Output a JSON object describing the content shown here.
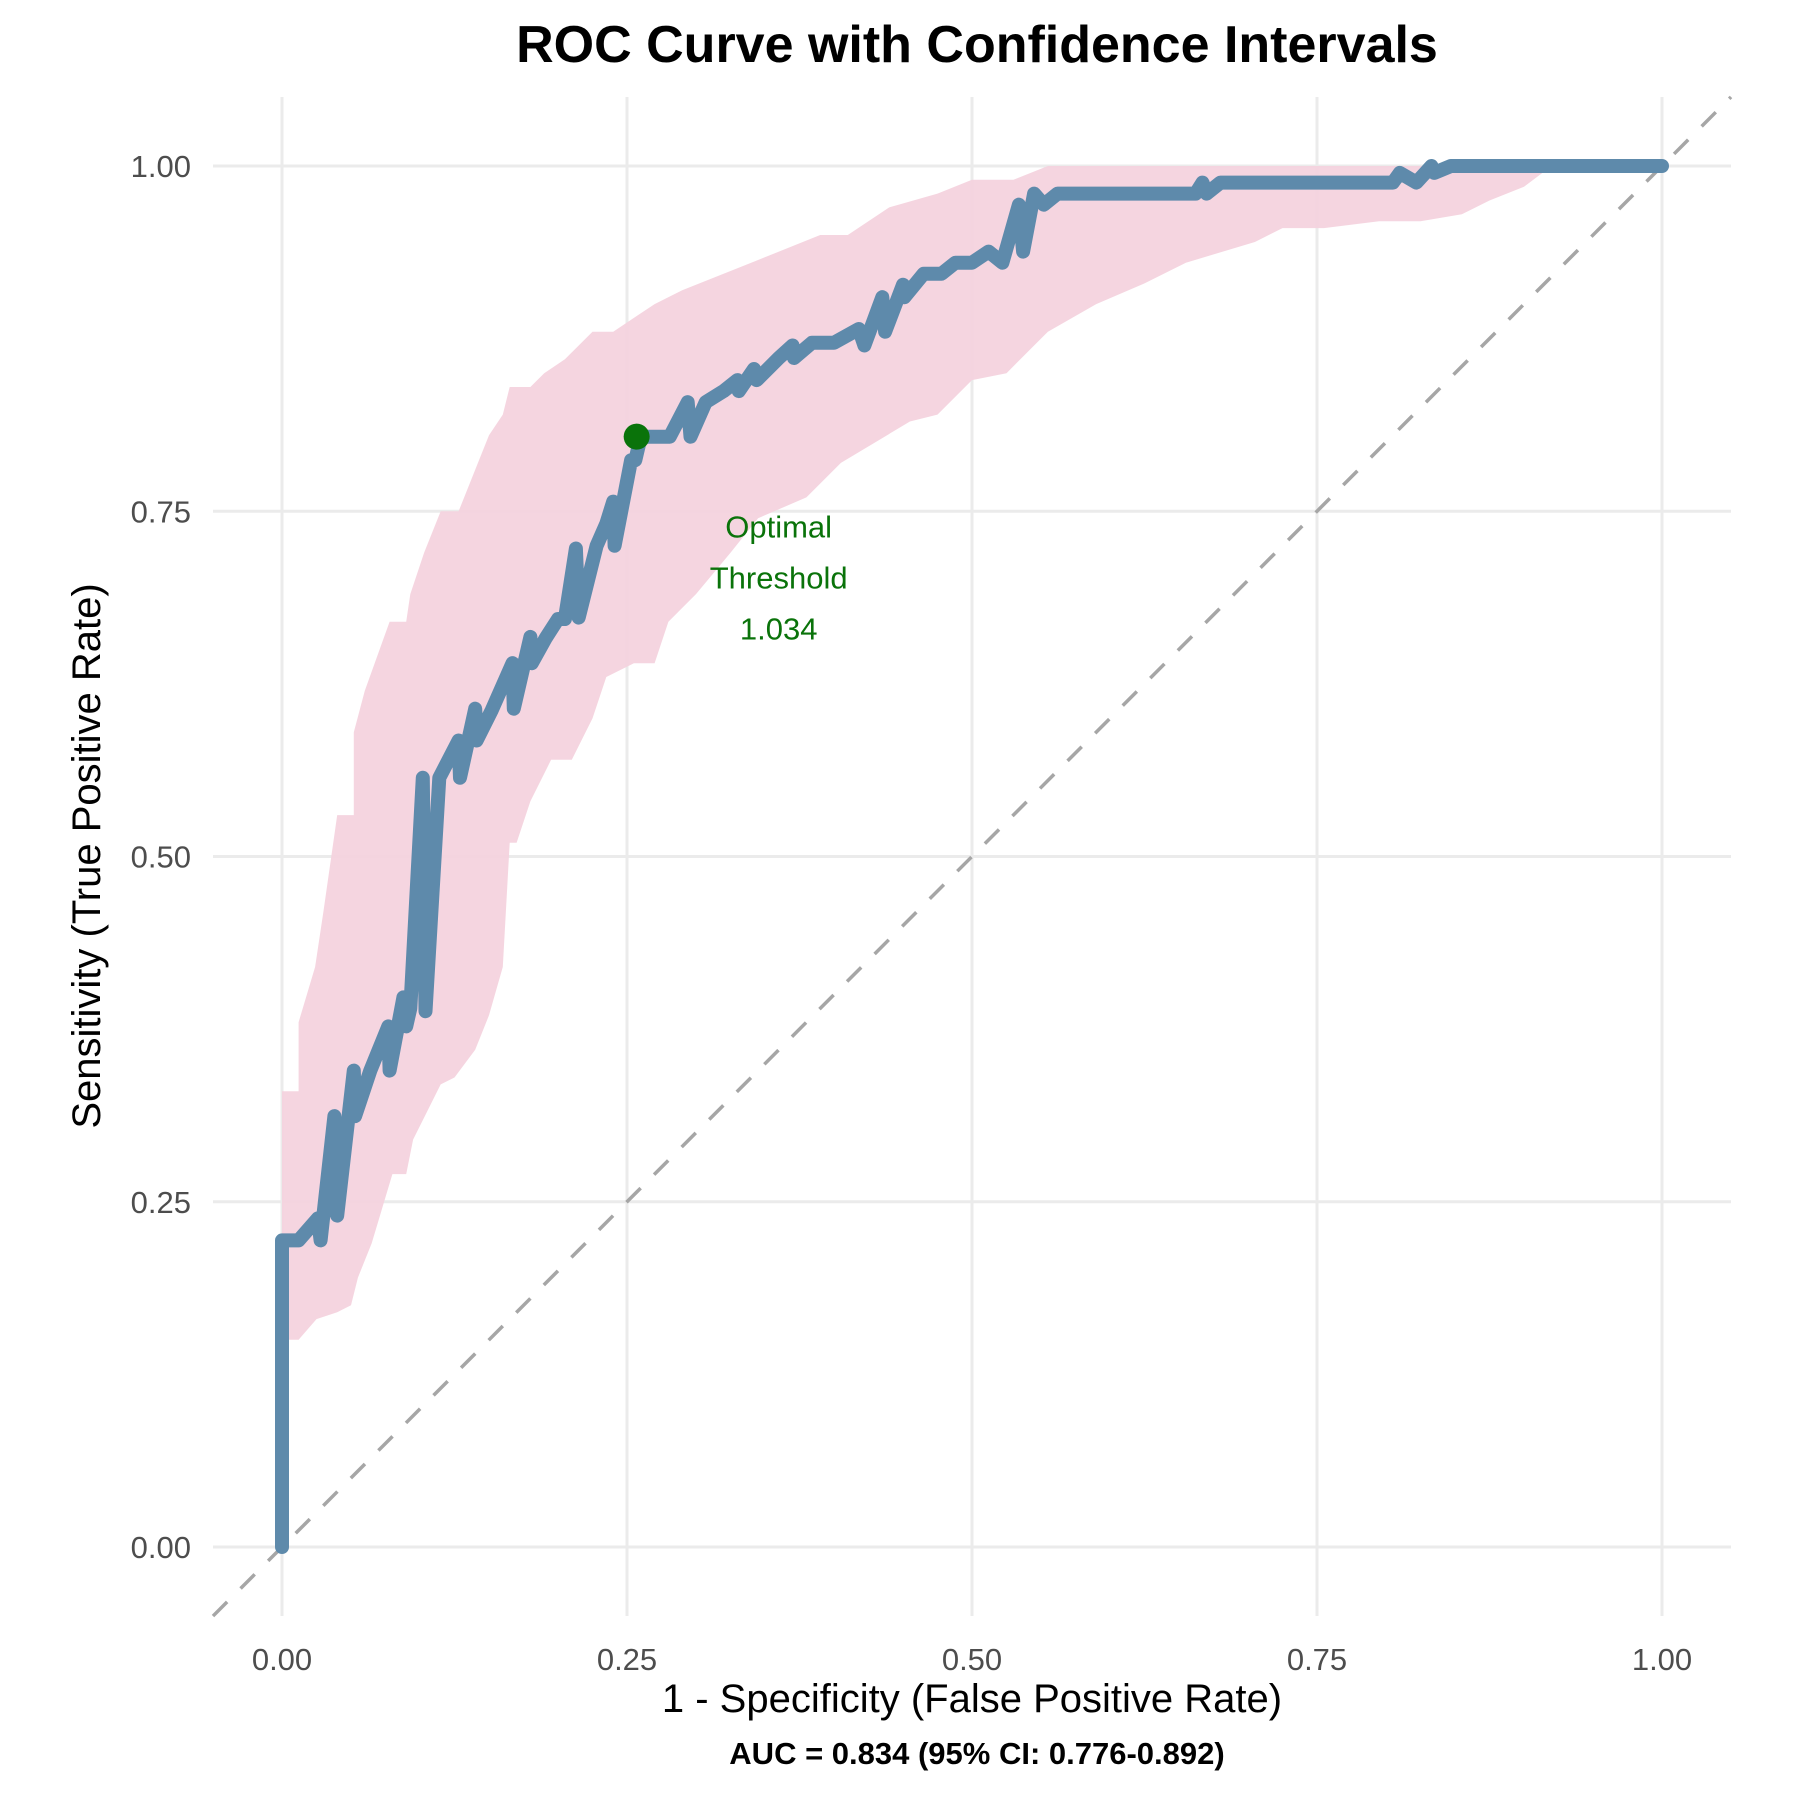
{
  "chart_data": {
    "type": "line",
    "title": "ROC Curve with Confidence Intervals",
    "xlabel": "1 - Specificity (False Positive Rate)",
    "ylabel": "Sensitivity (True Positive Rate)",
    "caption": "AUC = 0.834 (95% CI: 0.776-0.892)",
    "xlim": [
      -0.05,
      1.05
    ],
    "ylim": [
      -0.05,
      1.05
    ],
    "grid": true,
    "legend": "none",
    "x_ticks": [
      0,
      0.25,
      0.5,
      0.75,
      1
    ],
    "x_tick_labels": [
      "0.00",
      "0.25",
      "0.50",
      "0.75",
      "1.00"
    ],
    "y_ticks": [
      0,
      0.25,
      0.5,
      0.75,
      1
    ],
    "y_tick_labels": [
      "0.00",
      "0.25",
      "0.50",
      "0.75",
      "1.00"
    ],
    "colors": {
      "roc_line": "#5e8aab",
      "ci_band": "#f4d3de",
      "reference_line": "#a6a6a6",
      "optimal_point": "#0a730a",
      "grid": "#ebebeb"
    },
    "series": [
      {
        "name": "ROC curve",
        "x": [
          0,
          0,
          0.012,
          0.026,
          0.028,
          0.038,
          0.04,
          0.052,
          0.053,
          0.064,
          0.077,
          0.078,
          0.088,
          0.09,
          0.093,
          0.102,
          0.104,
          0.114,
          0.128,
          0.129,
          0.14,
          0.141,
          0.152,
          0.167,
          0.168,
          0.18,
          0.181,
          0.191,
          0.2,
          0.205,
          0.213,
          0.215,
          0.228,
          0.235,
          0.24,
          0.241,
          0.253,
          0.256,
          0.26,
          0.281,
          0.294,
          0.296,
          0.307,
          0.32,
          0.33,
          0.331,
          0.342,
          0.344,
          0.36,
          0.37,
          0.371,
          0.384,
          0.385,
          0.4,
          0.418,
          0.422,
          0.435,
          0.437,
          0.45,
          0.451,
          0.465,
          0.478,
          0.488,
          0.5,
          0.512,
          0.522,
          0.534,
          0.537,
          0.545,
          0.552,
          0.562,
          0.58,
          0.662,
          0.667,
          0.67,
          0.68,
          0.805,
          0.81,
          0.822,
          0.833,
          0.835,
          0.847,
          0.86,
          1.0
        ],
        "y": [
          0,
          0.222,
          0.222,
          0.238,
          0.222,
          0.312,
          0.24,
          0.345,
          0.312,
          0.345,
          0.377,
          0.345,
          0.398,
          0.377,
          0.39,
          0.557,
          0.388,
          0.557,
          0.584,
          0.557,
          0.607,
          0.584,
          0.606,
          0.64,
          0.607,
          0.659,
          0.64,
          0.658,
          0.672,
          0.672,
          0.723,
          0.673,
          0.725,
          0.741,
          0.757,
          0.725,
          0.787,
          0.787,
          0.804,
          0.804,
          0.829,
          0.804,
          0.829,
          0.837,
          0.845,
          0.837,
          0.853,
          0.845,
          0.861,
          0.87,
          0.861,
          0.872,
          0.872,
          0.872,
          0.882,
          0.87,
          0.905,
          0.88,
          0.914,
          0.905,
          0.922,
          0.922,
          0.93,
          0.93,
          0.938,
          0.93,
          0.972,
          0.938,
          0.98,
          0.972,
          0.98,
          0.98,
          0.98,
          0.988,
          0.98,
          0.988,
          0.988,
          0.995,
          0.988,
          1.0,
          0.995,
          1.0,
          1.0,
          1.0
        ]
      },
      {
        "name": "95% CI upper",
        "x": [
          0,
          0.012,
          0.012,
          0.024,
          0.03,
          0.04,
          0.04,
          0.052,
          0.052,
          0.06,
          0.078,
          0.09,
          0.093,
          0.103,
          0.115,
          0.128,
          0.14,
          0.15,
          0.16,
          0.165,
          0.18,
          0.19,
          0.205,
          0.215,
          0.225,
          0.24,
          0.255,
          0.27,
          0.29,
          0.315,
          0.34,
          0.365,
          0.39,
          0.41,
          0.44,
          0.475,
          0.5,
          0.53,
          0.555,
          0.575,
          1.0
        ],
        "y": [
          0.33,
          0.33,
          0.38,
          0.42,
          0.46,
          0.53,
          0.53,
          0.53,
          0.59,
          0.62,
          0.67,
          0.67,
          0.69,
          0.72,
          0.75,
          0.75,
          0.78,
          0.805,
          0.82,
          0.84,
          0.84,
          0.85,
          0.86,
          0.87,
          0.88,
          0.88,
          0.89,
          0.9,
          0.91,
          0.92,
          0.93,
          0.94,
          0.95,
          0.95,
          0.97,
          0.98,
          0.99,
          0.99,
          1.0,
          1.0,
          1.0
        ]
      },
      {
        "name": "95% CI lower",
        "x": [
          0,
          0.012,
          0.025,
          0.04,
          0.05,
          0.055,
          0.065,
          0.08,
          0.09,
          0.095,
          0.105,
          0.115,
          0.125,
          0.14,
          0.15,
          0.16,
          0.165,
          0.17,
          0.18,
          0.19,
          0.195,
          0.21,
          0.225,
          0.235,
          0.255,
          0.27,
          0.28,
          0.3,
          0.325,
          0.345,
          0.38,
          0.405,
          0.43,
          0.455,
          0.475,
          0.5,
          0.525,
          0.545,
          0.555,
          0.59,
          0.625,
          0.655,
          0.705,
          0.725,
          0.755,
          0.795,
          0.825,
          0.855,
          0.875,
          0.9,
          0.92,
          1.0
        ],
        "y": [
          0.15,
          0.15,
          0.165,
          0.17,
          0.175,
          0.195,
          0.22,
          0.27,
          0.27,
          0.295,
          0.315,
          0.335,
          0.34,
          0.36,
          0.385,
          0.42,
          0.51,
          0.51,
          0.54,
          0.56,
          0.57,
          0.57,
          0.6,
          0.63,
          0.64,
          0.64,
          0.67,
          0.69,
          0.72,
          0.745,
          0.76,
          0.785,
          0.8,
          0.815,
          0.82,
          0.845,
          0.85,
          0.87,
          0.88,
          0.9,
          0.915,
          0.93,
          0.945,
          0.955,
          0.955,
          0.96,
          0.96,
          0.965,
          0.975,
          0.985,
          1.0,
          1.0
        ]
      },
      {
        "name": "Chance line",
        "x": [
          -0.05,
          1.05
        ],
        "y": [
          -0.05,
          1.05
        ]
      }
    ],
    "optimal_point": {
      "fpr": 0.257,
      "tpr": 0.804,
      "label_lines": [
        "Optimal",
        "Threshold",
        "1.034"
      ],
      "threshold": 1.034
    }
  }
}
